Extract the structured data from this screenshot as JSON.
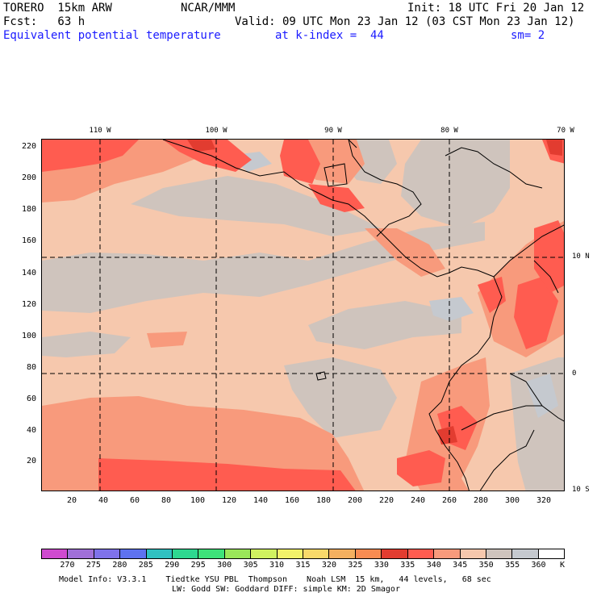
{
  "header": {
    "model": "TORERO  15km ARW",
    "org": "NCAR/MMM",
    "init": "Init: 18 UTC Fri 20 Jan 12",
    "fcst": "Fcst:   63 h",
    "valid": "Valid: 09 UTC Mon 23 Jan 12 (03 CST Mon 23 Jan 12)",
    "field": "Equivalent potential temperature",
    "level": "at k-index =  44",
    "smooth": "sm= 2"
  },
  "map": {
    "top_lon_labels": [
      "110 W",
      "100 W",
      "90 W",
      "80 W",
      "70 W"
    ],
    "right_lat_labels": [
      "10 N",
      "0",
      "10 S"
    ],
    "y_ticks": [
      "220",
      "200",
      "180",
      "160",
      "140",
      "120",
      "100",
      "80",
      "60",
      "40",
      "20"
    ],
    "x_ticks": [
      "20",
      "40",
      "60",
      "80",
      "100",
      "120",
      "140",
      "160",
      "180",
      "200",
      "220",
      "240",
      "260",
      "280",
      "300",
      "320"
    ],
    "grid_rows": 220,
    "grid_cols": 330,
    "colors": {
      "dark": "#e23c30",
      "red": "#ff5c50",
      "salmon": "#f89a7c",
      "peach": "#f6c8ad",
      "gray": "#cfc4bd",
      "lightgray": "#c5c9cf"
    }
  },
  "legend": {
    "labels": [
      "270",
      "275",
      "280",
      "285",
      "290",
      "295",
      "300",
      "305",
      "310",
      "315",
      "320",
      "325",
      "330",
      "335",
      "340",
      "345",
      "350",
      "355",
      "360"
    ],
    "unit": "K",
    "colors": [
      "#d04ad0",
      "#a070d8",
      "#7f72ea",
      "#5e72f0",
      "#30c0c0",
      "#2ed890",
      "#3ee27a",
      "#9ae65a",
      "#d0f260",
      "#f2f26a",
      "#f8d96a",
      "#f4b060",
      "#f88c52",
      "#e23c30",
      "#ff5c50",
      "#f89a7c",
      "#f6c8ad",
      "#cfc4bd",
      "#c5c9cf",
      "#ffffff"
    ]
  },
  "footer": {
    "line1": "Model Info: V3.3.1    Tiedtke YSU PBL  Thompson    Noah LSM  15 km,   44 levels,   68 sec",
    "line2": "LW: Godd SW: Goddard DIFF: simple KM: 2D Smagor"
  }
}
